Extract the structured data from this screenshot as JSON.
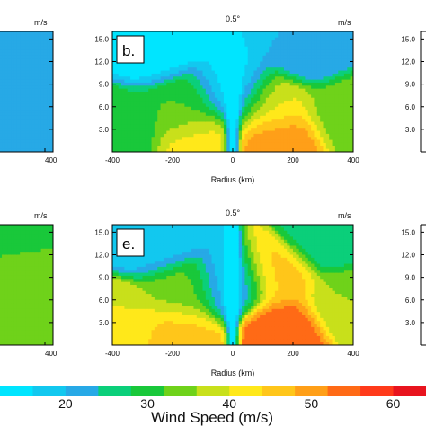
{
  "chart_data": [
    {
      "type": "heatmap",
      "panel": "b.",
      "title": "0.5°",
      "unit": "m/s",
      "xlabel": "Radius (km)",
      "x_ticks": [
        "-400",
        "-200",
        "0",
        "200",
        "400"
      ],
      "y_ticks": [
        "15.0",
        "12.0",
        "9.0",
        "6.0",
        "3.0"
      ],
      "xlim": [
        -400,
        400
      ],
      "ylim": [
        0,
        16
      ],
      "features": [
        {
          "r": 150,
          "z": 1.5,
          "w": 52
        },
        {
          "r": -100,
          "z": 1.5,
          "w": 42
        },
        {
          "r": 120,
          "z": 6,
          "w": 40
        },
        {
          "r": -150,
          "z": 6,
          "w": 32
        },
        {
          "r": -380,
          "z": 3,
          "w": 30
        },
        {
          "r": 380,
          "z": 5,
          "w": 34
        },
        {
          "r": 0,
          "z": 8,
          "w": 14
        },
        {
          "r": -250,
          "z": 14,
          "w": 14
        },
        {
          "r": 250,
          "z": 14,
          "w": 20
        }
      ]
    },
    {
      "type": "heatmap",
      "panel": "e.",
      "title": "0.5°",
      "unit": "m/s",
      "xlabel": "Radius (km)",
      "x_ticks": [
        "-400",
        "-200",
        "0",
        "200",
        "400"
      ],
      "y_ticks": [
        "15.0",
        "12.0",
        "9.0",
        "6.0",
        "3.0"
      ],
      "xlim": [
        -400,
        400
      ],
      "ylim": [
        0,
        16
      ],
      "features": [
        {
          "r": 150,
          "z": 2,
          "w": 56
        },
        {
          "r": -180,
          "z": 1.5,
          "w": 46
        },
        {
          "r": 140,
          "z": 9,
          "w": 46
        },
        {
          "r": -160,
          "z": 7,
          "w": 34
        },
        {
          "r": -380,
          "z": 3,
          "w": 40
        },
        {
          "r": 380,
          "z": 6,
          "w": 36
        },
        {
          "r": 0,
          "z": 8,
          "w": 16
        },
        {
          "r": -250,
          "z": 14,
          "w": 18
        },
        {
          "r": 320,
          "z": 14,
          "w": 24
        }
      ]
    },
    {
      "type": "colorbar",
      "title": "Wind Speed (m/s)",
      "ticks": [
        "20",
        "30",
        "40",
        "50",
        "60"
      ],
      "range": [
        12,
        64
      ]
    }
  ],
  "partial_panels": {
    "left_unit": "m/s",
    "left_x_tick": "400",
    "right_y_ticks": [
      "15.0",
      "12.0",
      "9.0",
      "6.0",
      "3.0"
    ]
  },
  "colors": {
    "scale": [
      "#00e5ff",
      "#12c8ef",
      "#27a9e6",
      "#0bcf7a",
      "#19c83a",
      "#6fd21a",
      "#c8e01b",
      "#ffe81a",
      "#ffc61a",
      "#ff9f18",
      "#ff6a16",
      "#ff3a1a",
      "#e8141e"
    ]
  }
}
